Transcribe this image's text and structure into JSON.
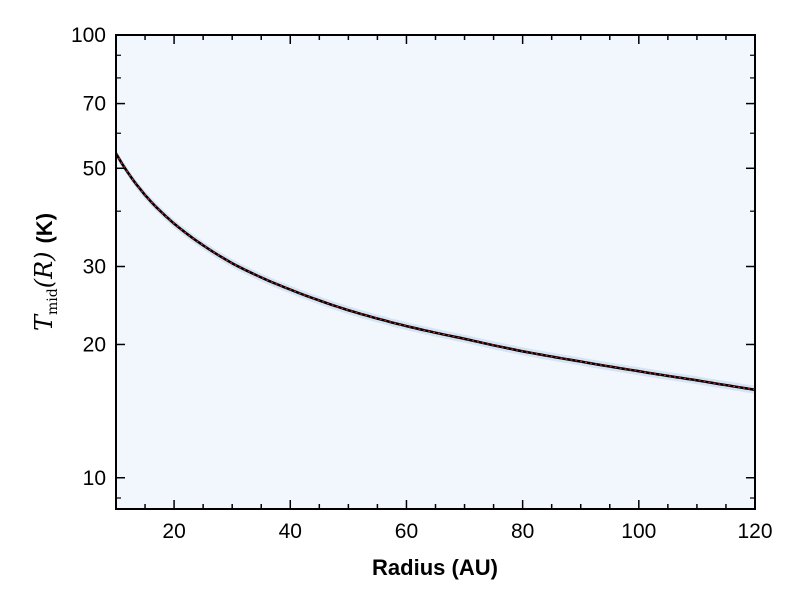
{
  "chart_data": {
    "type": "line",
    "xlabel": "Radius (AU)",
    "ylabel": {
      "symbol": "T",
      "subscript": "mid",
      "argument": "(R)",
      "unit": "(K)"
    },
    "xlim": [
      10,
      120
    ],
    "ylim": [
      8.5,
      100
    ],
    "yscale": "log",
    "xticks": [
      20,
      40,
      60,
      80,
      100,
      120
    ],
    "yticks": [
      10,
      20,
      30,
      50,
      70,
      100
    ],
    "grid": false,
    "colors": {
      "plot_background": "#f2f7fd",
      "band": "#c9dbef",
      "line": "#000000",
      "fit": "#d62728"
    },
    "series": [
      {
        "style": "solid",
        "x": [
          10,
          15,
          20,
          25,
          30,
          40,
          50,
          60,
          70,
          80,
          90,
          100,
          110,
          120
        ],
        "y": [
          54,
          43.5,
          37.5,
          33.5,
          30.5,
          26.6,
          23.9,
          22.0,
          20.6,
          19.3,
          18.3,
          17.4,
          16.6,
          15.8
        ]
      },
      {
        "style": "dotted",
        "x": [
          10,
          15,
          20,
          25,
          30,
          40,
          50,
          60,
          70,
          80,
          90,
          100,
          110,
          120
        ],
        "y": [
          54,
          43.5,
          37.5,
          33.5,
          30.5,
          26.6,
          23.9,
          22.0,
          20.6,
          19.3,
          18.3,
          17.4,
          16.6,
          15.8
        ]
      }
    ]
  }
}
